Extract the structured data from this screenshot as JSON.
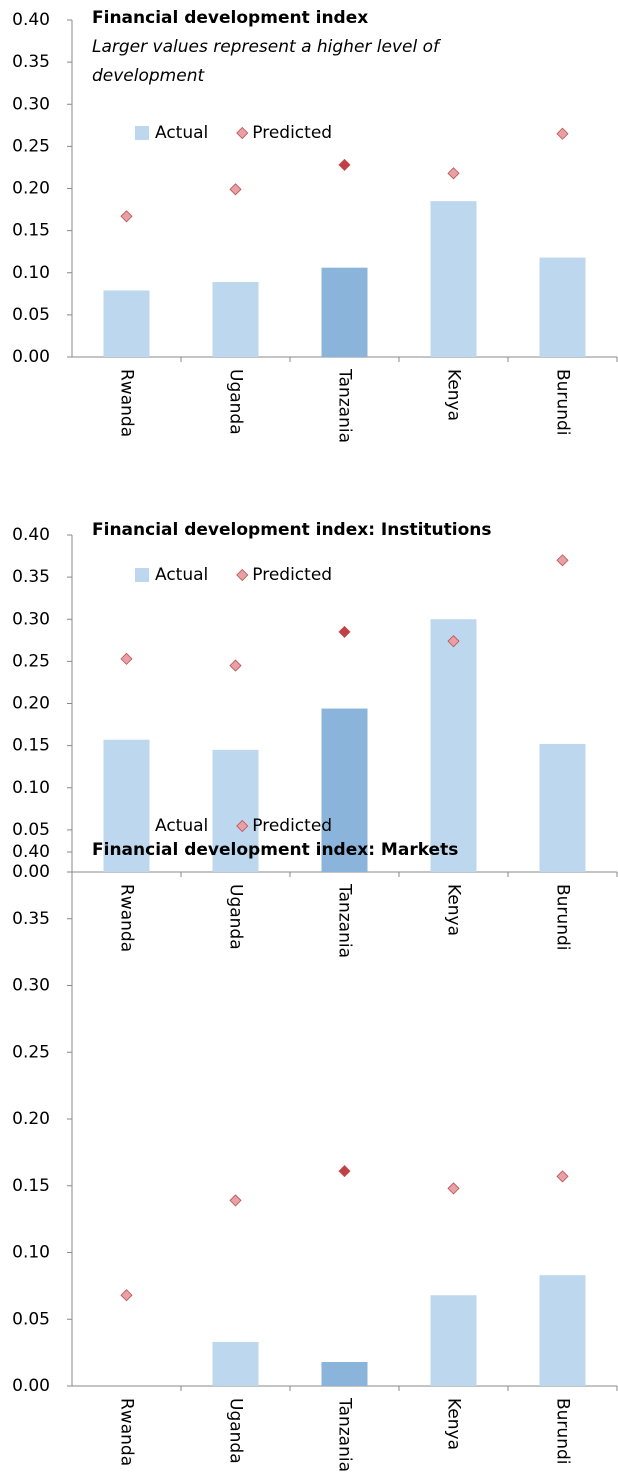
{
  "chart_data": [
    {
      "type": "bar",
      "title": "Financial development index",
      "subtitle": "Larger values represent a higher level of development",
      "categories": [
        "Rwanda",
        "Uganda",
        "Tanzania",
        "Kenya",
        "Burundi"
      ],
      "series": [
        {
          "name": "Actual",
          "type": "bar",
          "color": "#bdd7ee",
          "colors": [
            "#bdd7ee",
            "#bdd7ee",
            "#8ab4d9",
            "#bdd7ee",
            "#bdd7ee"
          ],
          "values": [
            0.079,
            0.089,
            0.106,
            0.185,
            0.118
          ]
        },
        {
          "name": "Predicted",
          "type": "scatter",
          "color": "#e6a0a6",
          "colors": [
            "#e6a0a6",
            "#e6a0a6",
            "#c0404a",
            "#e6a0a6",
            "#e6a0a6"
          ],
          "values": [
            0.167,
            0.199,
            0.228,
            0.218,
            0.265
          ]
        }
      ],
      "ylim": [
        0,
        0.4
      ],
      "yticks": [
        {
          "value": 0,
          "label": "0.00"
        },
        0.05,
        {
          "value": 0.1,
          "label": "0.10"
        },
        0.15,
        {
          "value": 0.2,
          "label": "0.20"
        },
        0.25,
        {
          "value": 0.3,
          "label": "0.30"
        },
        0.35,
        {
          "value": 0.4,
          "label": "0.40"
        }
      ]
    },
    {
      "type": "bar",
      "title": "Financial development index: Institutions",
      "categories": [
        "Rwanda",
        "Uganda",
        "Tanzania",
        "Kenya",
        "Burundi"
      ],
      "series": [
        {
          "name": "Actual",
          "type": "bar",
          "color": "#bdd7ee",
          "colors": [
            "#bdd7ee",
            "#bdd7ee",
            "#8ab4d9",
            "#bdd7ee",
            "#bdd7ee"
          ],
          "values": [
            0.157,
            0.145,
            0.194,
            0.3,
            0.152
          ]
        },
        {
          "name": "Predicted",
          "type": "scatter",
          "color": "#e6a0a6",
          "colors": [
            "#e6a0a6",
            "#e6a0a6",
            "#c0404a",
            "#e6a0a6",
            "#e6a0a6"
          ],
          "values": [
            0.253,
            0.245,
            0.285,
            0.274,
            0.37
          ]
        }
      ],
      "ylim": [
        0,
        0.4
      ],
      "yticks": [
        {
          "value": 0,
          "label": "0.00"
        },
        0.05,
        {
          "value": 0.1,
          "label": "0.10"
        },
        0.15,
        {
          "value": 0.2,
          "label": "0.20"
        },
        0.25,
        {
          "value": 0.3,
          "label": "0.30"
        },
        0.35,
        {
          "value": 0.4,
          "label": "0.40"
        }
      ]
    },
    {
      "type": "bar",
      "title": "Financial development index: Markets",
      "categories": [
        "Rwanda",
        "Uganda",
        "Tanzania",
        "Kenya",
        "Burundi"
      ],
      "series": [
        {
          "name": "Actual",
          "type": "bar",
          "color": "#bdd7ee",
          "colors": [
            "#bdd7ee",
            "#bdd7ee",
            "#8ab4d9",
            "#bdd7ee",
            "#bdd7ee"
          ],
          "values": [
            null,
            0.033,
            0.018,
            0.068,
            0.083
          ]
        },
        {
          "name": "Predicted",
          "type": "scatter",
          "color": "#e6a0a6",
          "colors": [
            "#e6a0a6",
            "#e6a0a6",
            "#c0404a",
            "#e6a0a6",
            "#e6a0a6"
          ],
          "values": [
            0.068,
            0.139,
            0.161,
            0.148,
            0.157
          ]
        }
      ],
      "ylim": [
        0,
        0.4
      ],
      "yticks": [
        {
          "value": 0,
          "label": "0.00"
        },
        0.05,
        {
          "value": 0.1,
          "label": "0.10"
        },
        0.15,
        {
          "value": 0.2,
          "label": "0.20"
        },
        0.25,
        {
          "value": 0.3,
          "label": "0.30"
        },
        0.35,
        {
          "value": 0.4,
          "label": "0.40"
        }
      ]
    }
  ]
}
